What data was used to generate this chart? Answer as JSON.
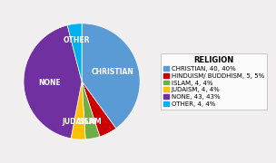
{
  "title": "RELIGION",
  "labels": [
    "CHRISTIAN, 40, 40%",
    "HINDUISM/ BUDDHISM, 5, 5%",
    "ISLAM, 4, 4%",
    "JUDAISM, 4, 4%",
    "NONE, 43, 43%",
    "OTHER, 4, 4%"
  ],
  "slice_labels": [
    "CHRISTIAN",
    "",
    "ISLAM",
    "JUDAISM",
    "NONE",
    "OTHER"
  ],
  "values": [
    40,
    5,
    4,
    4,
    43,
    4
  ],
  "colors": [
    "#5b9bd5",
    "#cc0000",
    "#70ad47",
    "#ffc000",
    "#7030a0",
    "#00b0f0"
  ],
  "background_color": "#f0eeee",
  "startangle": 90,
  "title_fontsize": 6,
  "label_fontsize": 5.5,
  "legend_fontsize": 5.0
}
